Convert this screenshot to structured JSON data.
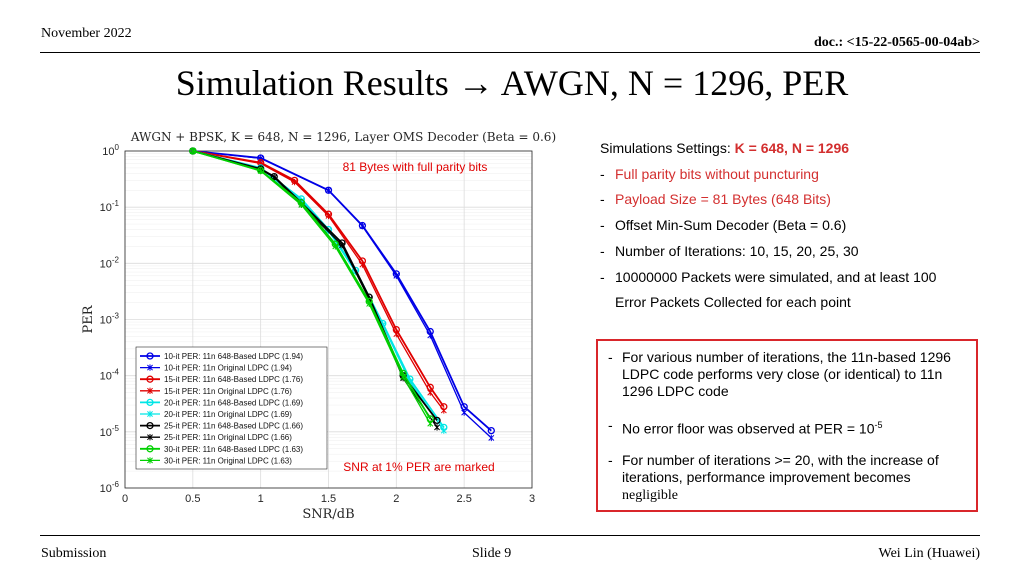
{
  "header": {
    "date": "November 2022",
    "doc": "doc.: <15-22-0565-00-04ab>"
  },
  "title": "Simulation Results → AWGN, N = 1296, PER",
  "chart_data": {
    "type": "line",
    "title": "AWGN + BPSK, K = 648, N = 1296, Layer OMS Decoder (Beta = 0.6)",
    "xlabel": "SNR/dB",
    "ylabel": "PER",
    "xlim": [
      0,
      3
    ],
    "ylim": [
      1e-06,
      1
    ],
    "yscale": "log",
    "xticks": [
      "0",
      "0.5",
      "1",
      "1.5",
      "2",
      "2.5",
      "3"
    ],
    "yticks": [
      "10^0",
      "10^-1",
      "10^-2",
      "10^-3",
      "10^-4",
      "10^-5",
      "10^-6"
    ],
    "grid": true,
    "legend_position": "bottom-left",
    "annotations": [
      "81 Bytes with full parity bits",
      "SNR at 1% PER are marked"
    ],
    "series": [
      {
        "name": "10-it PER: 11n 648-Based LDPC (1.94)",
        "color": "#0000e6",
        "marker": "circle",
        "x": [
          0.5,
          1.0,
          1.5,
          1.75,
          2.0,
          2.25,
          2.5,
          2.7
        ],
        "y": [
          1.0,
          0.75,
          0.2,
          0.047,
          0.0065,
          0.00061,
          2.8e-05,
          1.05e-05
        ]
      },
      {
        "name": "10-it PER: 11n Original LDPC (1.94)",
        "color": "#0000e6",
        "marker": "star",
        "x": [
          0.5,
          1.0,
          1.5,
          1.75,
          2.0,
          2.25,
          2.5,
          2.7
        ],
        "y": [
          1.0,
          0.74,
          0.2,
          0.046,
          0.006,
          0.00052,
          2.2e-05,
          7.8e-06
        ]
      },
      {
        "name": "15-it PER: 11n 648-Based LDPC (1.76)",
        "color": "#e00000",
        "marker": "circle",
        "x": [
          0.5,
          1.0,
          1.25,
          1.5,
          1.75,
          2.0,
          2.25,
          2.35
        ],
        "y": [
          1.0,
          0.62,
          0.3,
          0.075,
          0.011,
          0.00066,
          6.2e-05,
          2.8e-05
        ]
      },
      {
        "name": "15-it PER: 11n Original LDPC (1.76)",
        "color": "#e00000",
        "marker": "star",
        "x": [
          0.5,
          1.0,
          1.25,
          1.5,
          1.75,
          2.0,
          2.25,
          2.35
        ],
        "y": [
          1.0,
          0.6,
          0.28,
          0.07,
          0.0095,
          0.00055,
          5e-05,
          2.4e-05
        ]
      },
      {
        "name": "20-it PER: 11n 648-Based LDPC (1.69)",
        "color": "#00e6e6",
        "marker": "circle",
        "x": [
          0.5,
          1.0,
          1.3,
          1.5,
          1.7,
          1.9,
          2.1,
          2.35
        ],
        "y": [
          1.0,
          0.5,
          0.14,
          0.04,
          0.0075,
          0.00085,
          8.7e-05,
          1.2e-05
        ]
      },
      {
        "name": "20-it PER: 11n Original LDPC (1.69)",
        "color": "#00e6e6",
        "marker": "star",
        "x": [
          0.5,
          1.0,
          1.3,
          1.5,
          1.7,
          1.9,
          2.1,
          2.35
        ],
        "y": [
          1.0,
          0.49,
          0.13,
          0.038,
          0.007,
          0.0008,
          7.8e-05,
          1.05e-05
        ]
      },
      {
        "name": "25-it PER: 11n 648-Based LDPC (1.66)",
        "color": "#000000",
        "marker": "circle",
        "x": [
          0.5,
          1.0,
          1.1,
          1.3,
          1.6,
          1.8,
          2.05,
          2.3
        ],
        "y": [
          1.0,
          0.48,
          0.35,
          0.12,
          0.023,
          0.0025,
          0.0001,
          1.6e-05
        ]
      },
      {
        "name": "25-it PER: 11n Original LDPC (1.66)",
        "color": "#000000",
        "marker": "star",
        "x": [
          0.5,
          1.0,
          1.1,
          1.3,
          1.6,
          1.8,
          2.05,
          2.3
        ],
        "y": [
          1.0,
          0.47,
          0.34,
          0.11,
          0.021,
          0.0023,
          9e-05,
          1.2e-05
        ]
      },
      {
        "name": "30-it PER: 11n 648-Based LDPC (1.63)",
        "color": "#00d000",
        "marker": "circle",
        "x": [
          0.5,
          1.0,
          1.3,
          1.55,
          1.8,
          2.05,
          2.25
        ],
        "y": [
          1.0,
          0.45,
          0.12,
          0.022,
          0.0021,
          0.00011,
          1.7e-05
        ]
      },
      {
        "name": "30-it PER: 11n Original LDPC (1.63)",
        "color": "#00d000",
        "marker": "star",
        "x": [
          0.5,
          1.0,
          1.3,
          1.55,
          1.8,
          2.05,
          2.25
        ],
        "y": [
          1.0,
          0.44,
          0.11,
          0.02,
          0.0019,
          9.5e-05,
          1.4e-05
        ]
      }
    ]
  },
  "settings": {
    "heading": "Simulations Settings:",
    "heading_value": "K = 648, N = 1296",
    "items": [
      "Full parity bits without puncturing",
      "Payload Size = 81 Bytes (648 Bits)",
      "Offset Min-Sum Decoder (Beta = 0.6)",
      "Number of Iterations: 10, 15, 20, 25, 30",
      "10000000 Packets were simulated, and at least 100"
    ],
    "item5_cont": "Error Packets Collected for each point"
  },
  "box": {
    "p1": "For various number of iterations, the 11n-based 1296 LDPC code performs very close (or identical) to 11n 1296 LDPC code",
    "p2": "No error floor was observed at PER = 10",
    "p2_sup": "-5",
    "p3": "For number of iterations >= 20, with the increase of iterations, performance improvement becomes",
    "p3_tail": "negligible"
  },
  "footer": {
    "left": "Submission",
    "center": "Slide 9",
    "right": "Wei Lin (Huawei)"
  }
}
